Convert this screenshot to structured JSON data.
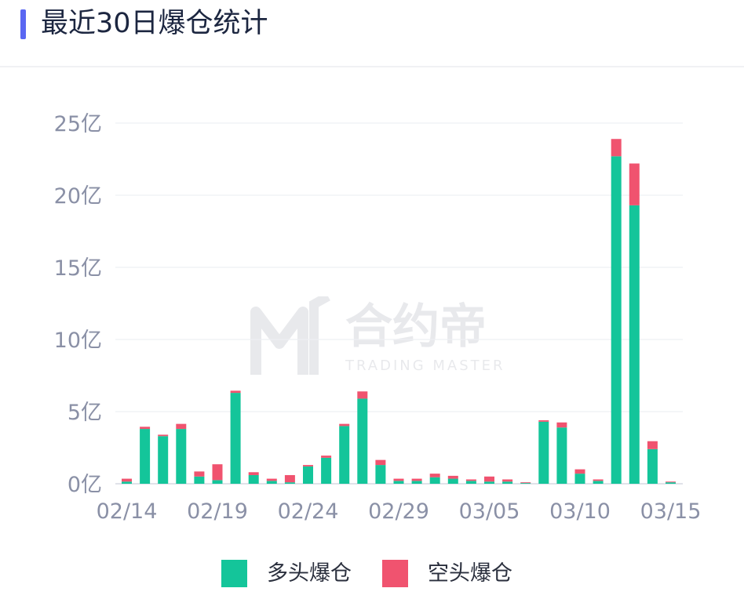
{
  "header": {
    "title": "最近30日爆仓统计",
    "accent_color": "#5a67f2"
  },
  "watermark": {
    "name": "合约帝",
    "subtitle": "TRADING MASTER"
  },
  "legend": {
    "items": [
      {
        "label": "多头爆仓",
        "color": "#14c59a"
      },
      {
        "label": "空头爆仓",
        "color": "#f0536f"
      }
    ]
  },
  "chart_data": {
    "type": "bar",
    "stacked": true,
    "categories": [
      "02/14",
      "02/15",
      "02/16",
      "02/17",
      "02/18",
      "02/19",
      "02/20",
      "02/21",
      "02/22",
      "02/23",
      "02/24",
      "02/25",
      "02/26",
      "02/27",
      "02/28",
      "02/29",
      "03/01",
      "03/02",
      "03/03",
      "03/04",
      "03/05",
      "03/06",
      "03/07",
      "03/08",
      "03/09",
      "03/10",
      "03/11",
      "03/12",
      "03/13",
      "03/14",
      "03/15"
    ],
    "x_tick_labels": [
      "02/14",
      "02/19",
      "02/24",
      "02/29",
      "03/05",
      "03/10",
      "03/15"
    ],
    "y_tick_labels": [
      "0亿",
      "5亿",
      "10亿",
      "15亿",
      "20亿",
      "25亿"
    ],
    "y_ticks": [
      0,
      5,
      10,
      15,
      20,
      25
    ],
    "ylim": [
      0,
      25
    ],
    "unit": "亿",
    "grid": true,
    "legend_position": "bottom",
    "series": [
      {
        "name": "多头爆仓",
        "color": "#14c59a",
        "values": [
          0.15,
          3.8,
          3.3,
          3.8,
          0.5,
          0.25,
          6.3,
          0.6,
          0.2,
          0.1,
          1.2,
          1.8,
          4.0,
          5.9,
          1.3,
          0.2,
          0.2,
          0.45,
          0.35,
          0.2,
          0.15,
          0.15,
          0.05,
          4.3,
          3.9,
          0.7,
          0.2,
          22.7,
          19.3,
          2.4,
          0.1
        ]
      },
      {
        "name": "空头爆仓",
        "color": "#f0536f",
        "values": [
          0.2,
          0.15,
          0.1,
          0.35,
          0.35,
          1.1,
          0.15,
          0.2,
          0.15,
          0.5,
          0.1,
          0.15,
          0.15,
          0.5,
          0.35,
          0.15,
          0.15,
          0.25,
          0.2,
          0.1,
          0.35,
          0.15,
          0.05,
          0.1,
          0.35,
          0.3,
          0.1,
          1.2,
          2.9,
          0.55,
          0.05
        ]
      }
    ]
  }
}
